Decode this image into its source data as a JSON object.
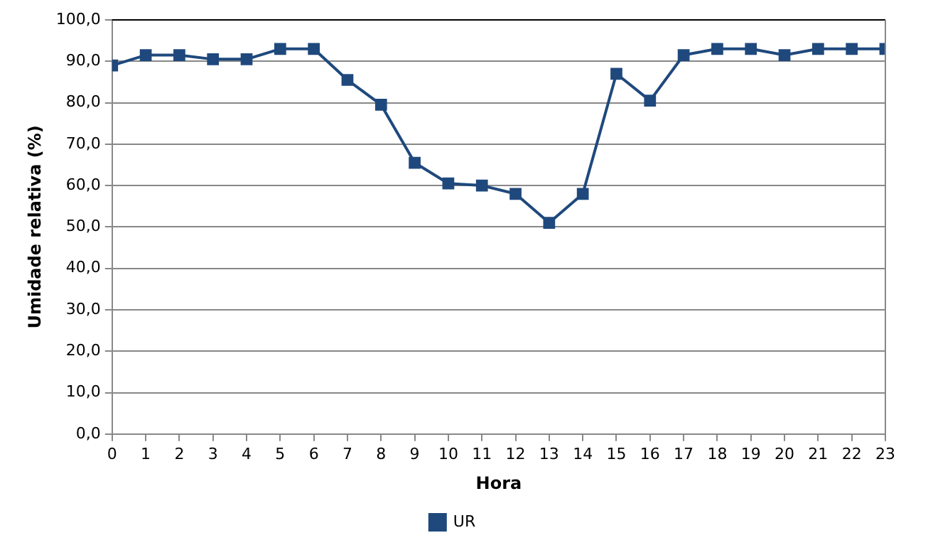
{
  "chart_data": {
    "type": "line",
    "xlabel": "Hora",
    "ylabel": "Umidade relativa (%)",
    "x": [
      0,
      1,
      2,
      3,
      4,
      5,
      6,
      7,
      8,
      9,
      10,
      11,
      12,
      13,
      14,
      15,
      16,
      17,
      18,
      19,
      20,
      21,
      22,
      23
    ],
    "series": [
      {
        "name": "UR",
        "color": "#1f497d",
        "values": [
          89,
          91.5,
          91.5,
          90.5,
          90.5,
          93,
          93,
          85.5,
          79.5,
          65.5,
          60.5,
          60,
          58,
          51,
          58,
          87,
          80.5,
          91.5,
          93,
          93,
          91.5,
          93,
          93,
          93
        ]
      }
    ],
    "xlim": [
      0,
      23
    ],
    "xticks": [
      0,
      1,
      2,
      3,
      4,
      5,
      6,
      7,
      8,
      9,
      10,
      11,
      12,
      13,
      14,
      15,
      16,
      17,
      18,
      19,
      20,
      21,
      22,
      23
    ],
    "ylim": [
      0,
      100
    ],
    "yticks": [
      {
        "value": 0,
        "label": "0,0"
      },
      {
        "value": 10,
        "label": "10,0"
      },
      {
        "value": 20,
        "label": "20,0"
      },
      {
        "value": 30,
        "label": "30,0"
      },
      {
        "value": 40,
        "label": "40,0"
      },
      {
        "value": 50,
        "label": "50,0"
      },
      {
        "value": 60,
        "label": "60,0"
      },
      {
        "value": 70,
        "label": "70,0"
      },
      {
        "value": 80,
        "label": "80,0"
      },
      {
        "value": 90,
        "label": "90,0"
      },
      {
        "value": 100,
        "label": "100,0"
      }
    ],
    "grid": "y",
    "legend": "bottom",
    "marker": "square",
    "line_style": "solid"
  }
}
